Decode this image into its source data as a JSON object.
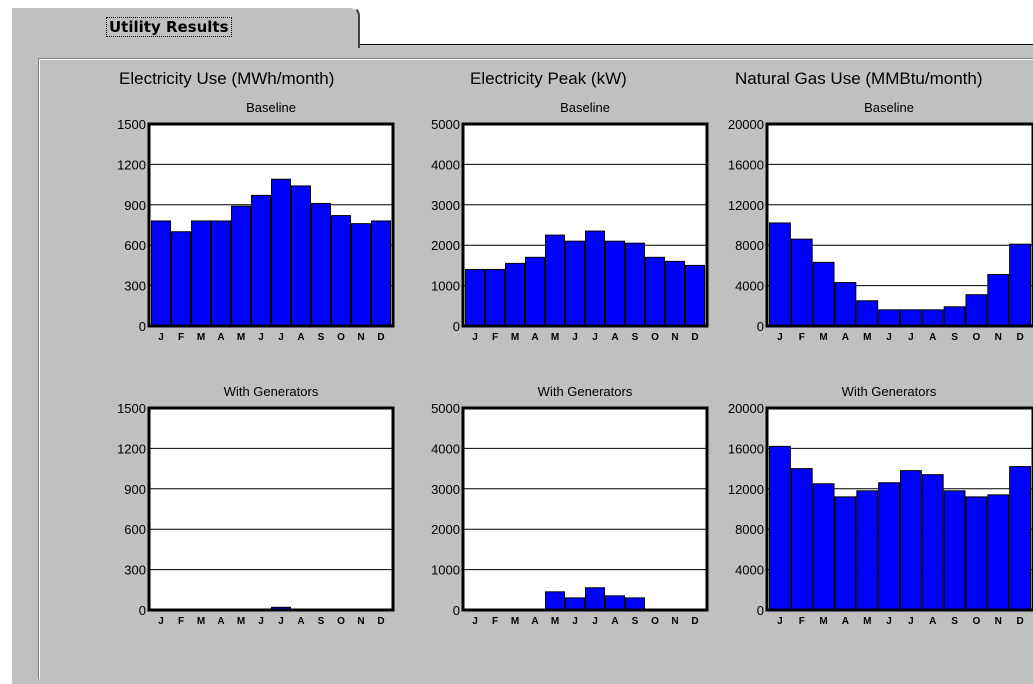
{
  "tab": {
    "label": "Utility Results"
  },
  "columns": [
    {
      "title": "Electricity Use (MWh/month)"
    },
    {
      "title": "Electricity Peak (kW)"
    },
    {
      "title": "Natural Gas Use (MMBtu/month)"
    }
  ],
  "colors": {
    "bar": "#0000ff",
    "bar_edge": "#000000"
  },
  "chart_data": [
    {
      "type": "bar",
      "subtitle": "Baseline",
      "categories": [
        "J",
        "F",
        "M",
        "A",
        "M",
        "J",
        "J",
        "A",
        "S",
        "O",
        "N",
        "D"
      ],
      "yticks": [
        0,
        300,
        600,
        900,
        1200,
        1500
      ],
      "ylim": [
        0,
        1500
      ],
      "values": [
        780,
        700,
        780,
        780,
        890,
        970,
        1090,
        1040,
        910,
        820,
        760,
        780
      ]
    },
    {
      "type": "bar",
      "subtitle": "Baseline",
      "categories": [
        "J",
        "F",
        "M",
        "A",
        "M",
        "J",
        "J",
        "A",
        "S",
        "O",
        "N",
        "D"
      ],
      "yticks": [
        0,
        1000,
        2000,
        3000,
        4000,
        5000
      ],
      "ylim": [
        0,
        5000
      ],
      "values": [
        1400,
        1400,
        1550,
        1700,
        2250,
        2100,
        2350,
        2100,
        2050,
        1700,
        1600,
        1500
      ]
    },
    {
      "type": "bar",
      "subtitle": "Baseline",
      "categories": [
        "J",
        "F",
        "M",
        "A",
        "M",
        "J",
        "J",
        "A",
        "S",
        "O",
        "N",
        "D"
      ],
      "yticks": [
        0,
        4000,
        8000,
        12000,
        16000,
        20000
      ],
      "ylim": [
        0,
        20000
      ],
      "values": [
        10200,
        8600,
        6300,
        4300,
        2500,
        1600,
        1600,
        1600,
        1900,
        3100,
        5100,
        8100
      ]
    },
    {
      "type": "bar",
      "subtitle": "With Generators",
      "categories": [
        "J",
        "F",
        "M",
        "A",
        "M",
        "J",
        "J",
        "A",
        "S",
        "O",
        "N",
        "D"
      ],
      "yticks": [
        0,
        300,
        600,
        900,
        1200,
        1500
      ],
      "ylim": [
        0,
        1500
      ],
      "values": [
        0,
        0,
        0,
        0,
        0,
        0,
        20,
        0,
        0,
        0,
        0,
        0
      ]
    },
    {
      "type": "bar",
      "subtitle": "With Generators",
      "categories": [
        "J",
        "F",
        "M",
        "A",
        "M",
        "J",
        "J",
        "A",
        "S",
        "O",
        "N",
        "D"
      ],
      "yticks": [
        0,
        1000,
        2000,
        3000,
        4000,
        5000
      ],
      "ylim": [
        0,
        5000
      ],
      "values": [
        0,
        0,
        0,
        0,
        450,
        300,
        550,
        350,
        300,
        0,
        0,
        0
      ]
    },
    {
      "type": "bar",
      "subtitle": "With Generators",
      "categories": [
        "J",
        "F",
        "M",
        "A",
        "M",
        "J",
        "J",
        "A",
        "S",
        "O",
        "N",
        "D"
      ],
      "yticks": [
        0,
        4000,
        8000,
        12000,
        16000,
        20000
      ],
      "ylim": [
        0,
        20000
      ],
      "values": [
        16200,
        14000,
        12500,
        11200,
        11800,
        12600,
        13800,
        13400,
        11800,
        11200,
        11400,
        14200
      ]
    }
  ]
}
